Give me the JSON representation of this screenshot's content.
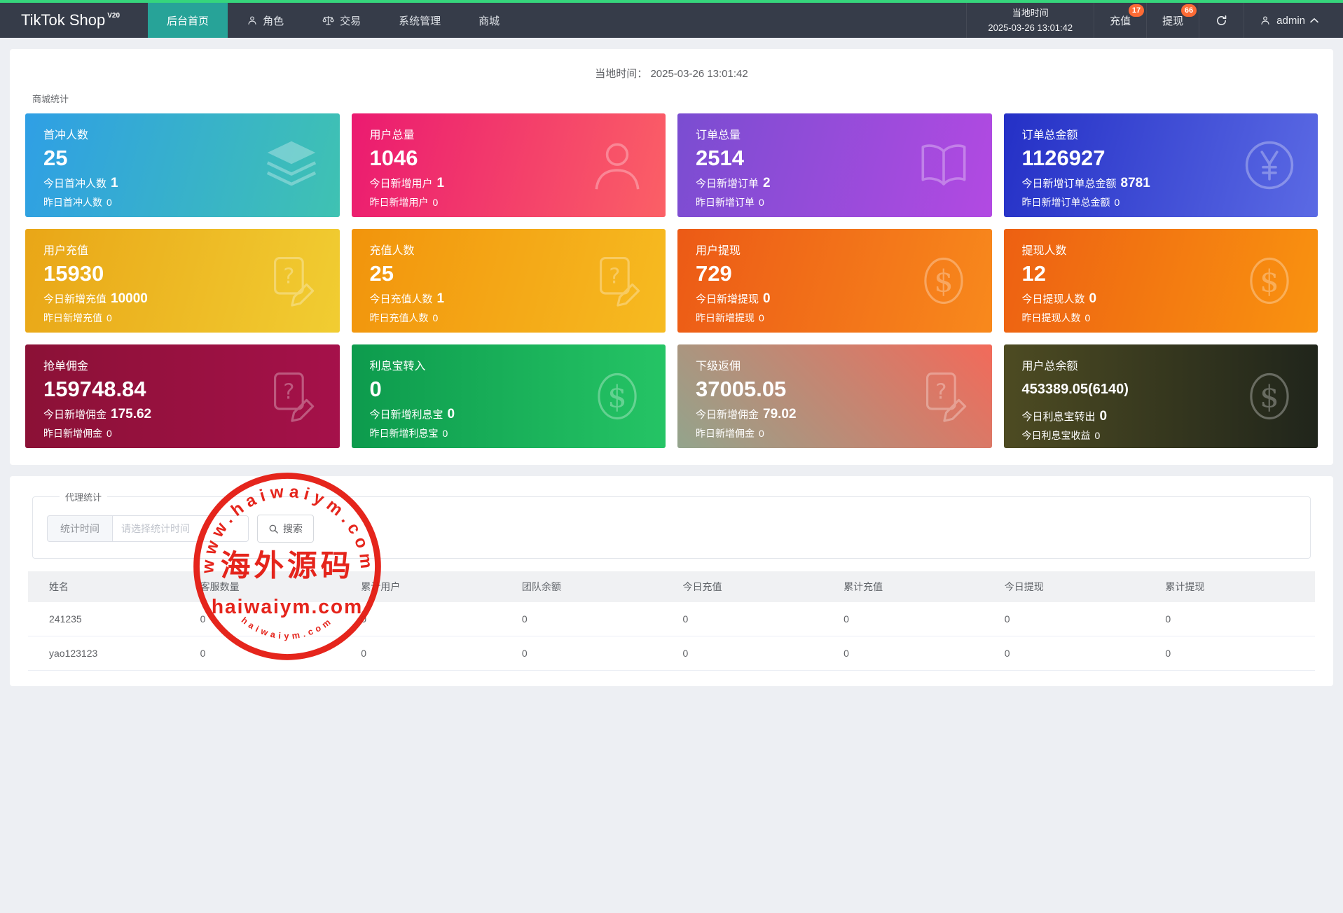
{
  "colors": {
    "topbar_bg": "#363c49",
    "topbar_accent_line": "#36d57c",
    "active_tab": "#27a398",
    "badge": "#fd6b35",
    "page_bg": "#edeff3",
    "stamp_red": "#e41a10"
  },
  "navbar": {
    "brand": "TikTok Shop",
    "brand_sup": "V20",
    "menu": [
      {
        "id": "home",
        "label": "后台首页",
        "active": true
      },
      {
        "id": "roles",
        "label": "角色",
        "icon": "person"
      },
      {
        "id": "trade",
        "label": "交易",
        "icon": "scales"
      },
      {
        "id": "system",
        "label": "系统管理"
      },
      {
        "id": "mall",
        "label": "商城"
      }
    ],
    "local_time_label": "当地时间",
    "local_time": "2025-03-26 13:01:42",
    "recharge_label": "充值",
    "recharge_badge": "17",
    "withdraw_label": "提现",
    "withdraw_badge": "66",
    "user": "admin"
  },
  "stats": {
    "time_label": "当地时间：",
    "time_value": "2025-03-26 13:01:42",
    "section_title": "商城统计",
    "cards": [
      {
        "id": "first-recharge-users",
        "title": "首冲人数",
        "value": "25",
        "line2_label": "今日首冲人数",
        "line2_value": "1",
        "line3_label": "昨日首冲人数",
        "line3_value": "0",
        "icon": "layers",
        "gradient": {
          "dir": "105deg",
          "from": "#2f9fe5",
          "to": "#3fc2b2"
        }
      },
      {
        "id": "total-users",
        "title": "用户总量",
        "value": "1046",
        "line2_label": "今日新增用户",
        "line2_value": "1",
        "line3_label": "昨日新增用户",
        "line3_value": "0",
        "icon": "user",
        "gradient": {
          "dir": "105deg",
          "from": "#eb1a70",
          "to": "#fb6066"
        }
      },
      {
        "id": "total-orders",
        "title": "订单总量",
        "value": "2514",
        "line2_label": "今日新增订单",
        "line2_value": "2",
        "line3_label": "昨日新增订单",
        "line3_value": "0",
        "icon": "book",
        "gradient": {
          "dir": "105deg",
          "from": "#7a4dd1",
          "to": "#b24ae2"
        }
      },
      {
        "id": "total-order-amount",
        "title": "订单总金额",
        "value": "1126927",
        "line2_label": "今日新增订单总金额",
        "line2_value": "8781",
        "line3_label": "昨日新增订单总金额",
        "line3_value": "0",
        "icon": "yen",
        "gradient": {
          "dir": "105deg",
          "from": "#2430c6",
          "to": "#5b6ae4"
        }
      },
      {
        "id": "user-recharge",
        "title": "用户充值",
        "value": "15930",
        "line2_label": "今日新增充值",
        "line2_value": "10000",
        "line3_label": "昨日新增充值",
        "line3_value": "0",
        "icon": "note",
        "gradient": {
          "dir": "105deg",
          "from": "#e9a617",
          "to": "#f1cd32"
        }
      },
      {
        "id": "recharge-users",
        "title": "充值人数",
        "value": "25",
        "line2_label": "今日充值人数",
        "line2_value": "1",
        "line3_label": "昨日充值人数",
        "line3_value": "0",
        "icon": "note",
        "gradient": {
          "dir": "105deg",
          "from": "#f2940c",
          "to": "#f6bb21"
        }
      },
      {
        "id": "user-withdraw",
        "title": "用户提现",
        "value": "729",
        "line2_label": "今日新增提现",
        "line2_value": "0",
        "line3_label": "昨日新增提现",
        "line3_value": "0",
        "icon": "dollar",
        "gradient": {
          "dir": "105deg",
          "from": "#ec5a16",
          "to": "#f8891c"
        }
      },
      {
        "id": "withdraw-users",
        "title": "提现人数",
        "value": "12",
        "line2_label": "今日提现人数",
        "line2_value": "0",
        "line3_label": "昨日提现人数",
        "line3_value": "0",
        "icon": "dollar",
        "gradient": {
          "dir": "105deg",
          "from": "#ed6012",
          "to": "#f99310"
        }
      },
      {
        "id": "grab-commission",
        "title": "抢单佣金",
        "value": "159748.84",
        "line2_label": "今日新增佣金",
        "line2_value": "175.62",
        "line3_label": "昨日新增佣金",
        "line3_value": "0",
        "icon": "note",
        "gradient": {
          "dir": "90deg",
          "from": "#8b1136",
          "to": "#a5114a"
        }
      },
      {
        "id": "lixibao-in",
        "title": "利息宝转入",
        "value": "0",
        "line2_label": "今日新增利息宝",
        "line2_value": "0",
        "line3_label": "昨日新增利息宝",
        "line3_value": "0",
        "icon": "dollar",
        "gradient": {
          "dir": "90deg",
          "from": "#0d9b4d",
          "to": "#25c465"
        }
      },
      {
        "id": "sub-rebate",
        "title": "下级返佣",
        "value": "37005.05",
        "line2_label": "今日新增佣金",
        "line2_value": "79.02",
        "line3_label": "昨日新增佣金",
        "line3_value": "0",
        "icon": "note",
        "gradient": {
          "dir": "225deg",
          "from": "#f26a5a",
          "to": "#93a48c"
        }
      },
      {
        "id": "user-total-balance",
        "title": "用户总余额",
        "value": "453389.05(6140)",
        "value_small": true,
        "line2_label": "今日利息宝转出",
        "line2_value": "0",
        "line3_label": "今日利息宝收益",
        "line3_value": "0",
        "icon": "dollar",
        "gradient": {
          "dir": "90deg",
          "from": "#4d4b22",
          "to": "#20251b"
        }
      }
    ]
  },
  "agent": {
    "section_title": "代理统计",
    "filter_label": "统计时间",
    "filter_placeholder": "请选择统计时间",
    "filter_value": "",
    "search_label": "搜索",
    "table": {
      "headers": [
        "姓名",
        "客服数量",
        "累计用户",
        "团队余额",
        "今日充值",
        "累计充值",
        "今日提现",
        "累计提现"
      ],
      "rows": [
        [
          "241235",
          "0",
          "0",
          "0",
          "0",
          "0",
          "0",
          "0"
        ],
        [
          "yao123123",
          "0",
          "0",
          "0",
          "0",
          "0",
          "0",
          "0"
        ]
      ]
    }
  },
  "watermark": {
    "arc_top": "www.haiwaiym.com",
    "center_text": "海外源码",
    "domain_text": "haiwaiym.com",
    "arc_bottom": "haiwaiym.com"
  }
}
